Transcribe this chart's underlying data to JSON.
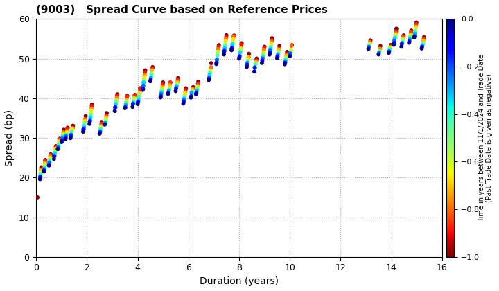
{
  "title": "(9003)   Spread Curve based on Reference Prices",
  "xlabel": "Duration (years)",
  "ylabel": "Spread (bp)",
  "colorbar_label_line1": "Time in years between 11/1/2024 and Trade Date",
  "colorbar_label_line2": "(Past Trade Date is given as negative)",
  "xlim": [
    0,
    16
  ],
  "ylim": [
    0,
    60
  ],
  "xticks": [
    0,
    2,
    4,
    6,
    8,
    10,
    12,
    14,
    16
  ],
  "yticks": [
    0,
    10,
    20,
    30,
    40,
    50,
    60
  ],
  "cmap": "jet_r",
  "vmin": -1.0,
  "vmax": 0.0,
  "colorbar_ticks": [
    0.0,
    -0.2,
    -0.4,
    -0.6,
    -0.8,
    -1.0
  ],
  "background_color": "#ffffff",
  "grid_color": "#b0b0b0",
  "marker_size": 18
}
